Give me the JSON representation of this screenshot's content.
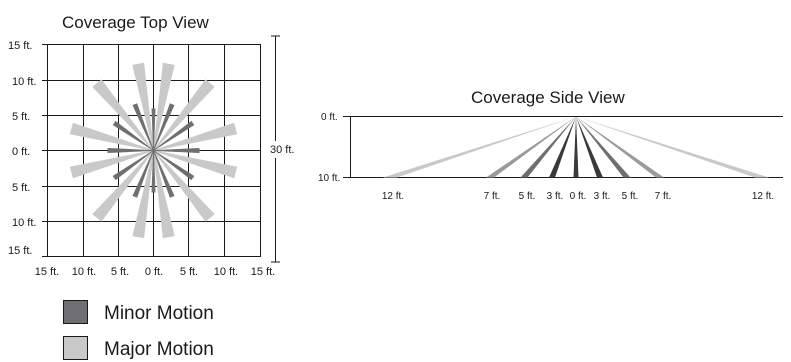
{
  "top_view": {
    "title": "Coverage Top View",
    "y_ticks": [
      "15 ft.",
      "10 ft.",
      "5 ft.",
      "0 ft.",
      "5 ft.",
      "10 ft.",
      "15 ft."
    ],
    "x_ticks": [
      "15 ft.",
      "10 ft.",
      "5 ft.",
      "0 ft.",
      "5 ft.",
      "10 ft.",
      "15 ft."
    ],
    "span_label": "30 ft."
  },
  "side_view": {
    "title": "Coverage Side View",
    "y_top_label": "0 ft.",
    "y_bottom_label": "10 ft.",
    "x_ticks": [
      "12 ft.",
      "7 ft.",
      "5 ft.",
      "3 ft.",
      "0 ft.",
      "3 ft.",
      "5 ft.",
      "7 ft.",
      "12 ft."
    ]
  },
  "legend": [
    {
      "label": "Minor Motion",
      "color": "#6f6f71"
    },
    {
      "label": "Major Motion",
      "color": "#c9c9ca"
    }
  ],
  "colors": {
    "minor": "#6f6f71",
    "major": "#c9c9ca",
    "side_mid": "#9a9a9b",
    "side_dark": "#3a3a3c",
    "line": "#1a1a1a"
  }
}
